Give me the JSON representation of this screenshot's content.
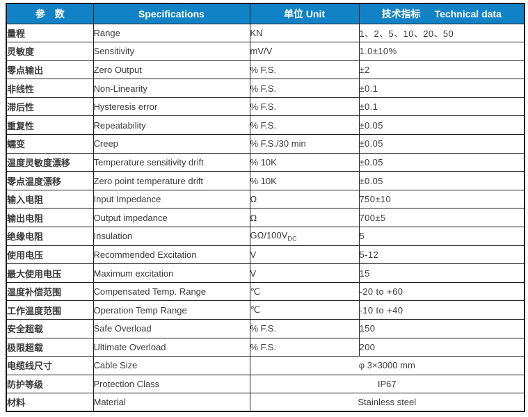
{
  "colors": {
    "header_bg": "#1182c5",
    "header_text": "#ffffff",
    "body_text": "#3b3b3b",
    "border": "#1f1f1f"
  },
  "table": {
    "headers": {
      "param": "参　数",
      "spec": "Specifications",
      "unit": "单位 Unit",
      "tech_zh": "技术指标",
      "tech_en": "Technical data"
    },
    "rows": [
      {
        "param_zh": "量程",
        "spec_en": "Range",
        "unit": "KN",
        "value": "1、2、5、10、20、50"
      },
      {
        "param_zh": "灵敏度",
        "spec_en": "Sensitivity",
        "unit": "mV/V",
        "value": "1.0±10%"
      },
      {
        "param_zh": "零点输出",
        "spec_en": "Zero Output",
        "unit": "% F.S.",
        "value": "±2"
      },
      {
        "param_zh": "非线性",
        "spec_en": "Non-Linearity",
        "unit": "% F.S.",
        "value": "±0.1"
      },
      {
        "param_zh": "滞后性",
        "spec_en": "Hysteresis error",
        "unit": "% F.S.",
        "value": "±0.1"
      },
      {
        "param_zh": "重复性",
        "spec_en": "Repeatability",
        "unit": "% F.S.",
        "value": "±0.05"
      },
      {
        "param_zh": "蠕变",
        "spec_en": "Creep",
        "unit": "% F.S./30 min",
        "value": "±0.05"
      },
      {
        "param_zh": "温度灵敏度漂移",
        "spec_en": "Temperature sensitivity drift",
        "unit": "% 10K",
        "value": "±0.05"
      },
      {
        "param_zh": "零点温度漂移",
        "spec_en": "Zero point temperature drift",
        "unit": "% 10K",
        "value": "±0.05"
      },
      {
        "param_zh": "输入电阻",
        "spec_en": "Input Impedance",
        "unit": "Ω",
        "value": "750±10"
      },
      {
        "param_zh": "输出电阻",
        "spec_en": "Output impedance",
        "unit": "Ω",
        "value": "700±5"
      },
      {
        "param_zh": "绝缘电阻",
        "spec_en": "Insulation",
        "unit": "GΩ/100V",
        "unit_sub": "DC",
        "value": "5"
      },
      {
        "param_zh": "使用电压",
        "spec_en": "Recommended Excitation",
        "unit": "V",
        "value": "5-12"
      },
      {
        "param_zh": "最大使用电压",
        "spec_en": "Maximum excitation",
        "unit": "V",
        "value": "15"
      },
      {
        "param_zh": "温度补偿范围",
        "spec_en": "Compensated Temp. Range",
        "unit": "℃",
        "value": "-20 to +60"
      },
      {
        "param_zh": "工作温度范围",
        "spec_en": "Operation Temp Range",
        "unit": "℃",
        "value": "-10 to +40"
      },
      {
        "param_zh": "安全超载",
        "spec_en": "Safe Overload",
        "unit": "% F.S.",
        "value": "150"
      },
      {
        "param_zh": "极限超载",
        "spec_en": "Ultimate Overload",
        "unit": "% F.S.",
        "value": "200"
      },
      {
        "param_zh": "电缆线尺寸",
        "spec_en": "Cable Size",
        "merged": true,
        "value": "φ 3×3000 mm"
      },
      {
        "param_zh": "防护等级",
        "spec_en": "Protection Class",
        "merged": true,
        "value": "IP67"
      },
      {
        "param_zh": "材料",
        "spec_en": "Material",
        "merged": true,
        "value": "Stainless steel"
      }
    ]
  }
}
